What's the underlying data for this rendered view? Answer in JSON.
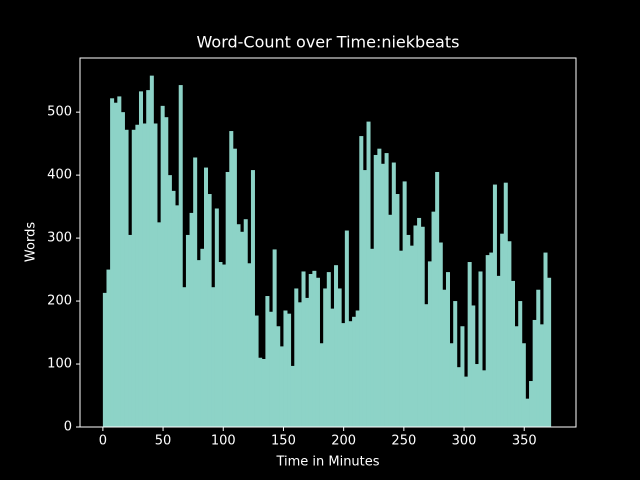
{
  "chart_data": {
    "type": "histogram",
    "title": "Word-Count over Time:niekbeats",
    "x_label": "Time in Minutes",
    "y_label": "Words",
    "color": "#8dd3c7",
    "bins": [
      0,
      3,
      6,
      9,
      12,
      15,
      18,
      21,
      24,
      27,
      30,
      33,
      36,
      39,
      42,
      45,
      48,
      51,
      54,
      57,
      60,
      63,
      66,
      69,
      72,
      75,
      78,
      81,
      84,
      87,
      90,
      93,
      96,
      99,
      102,
      105,
      108,
      111,
      114,
      117,
      120,
      123,
      126,
      129,
      132,
      135,
      138,
      141,
      144,
      147,
      150,
      153,
      156,
      159,
      162,
      165,
      168,
      171,
      174,
      177,
      180,
      183,
      186,
      189,
      192,
      195,
      198,
      201,
      204,
      207,
      210,
      213,
      216,
      219,
      222,
      225,
      228,
      231,
      234,
      237,
      240,
      243,
      246,
      249,
      252,
      255,
      258,
      261,
      264,
      267,
      270,
      273,
      276,
      279,
      282,
      285,
      288,
      291,
      294,
      297,
      300,
      303,
      306,
      309,
      312,
      315,
      318,
      321,
      324,
      327,
      330,
      333,
      336,
      339,
      342,
      345,
      348,
      351,
      354,
      357,
      360,
      363,
      366,
      369,
      372
    ],
    "values": [
      213,
      250,
      522,
      515,
      525,
      500,
      472,
      305,
      472,
      480,
      533,
      482,
      535,
      558,
      482,
      325,
      510,
      492,
      400,
      375,
      352,
      543,
      222,
      305,
      340,
      428,
      265,
      283,
      412,
      370,
      222,
      347,
      262,
      258,
      405,
      470,
      442,
      322,
      310,
      330,
      260,
      408,
      177,
      110,
      108,
      208,
      183,
      282,
      160,
      128,
      185,
      180,
      97,
      220,
      198,
      247,
      205,
      243,
      248,
      237,
      133,
      220,
      246,
      188,
      257,
      220,
      165,
      312,
      168,
      175,
      185,
      462,
      408,
      485,
      283,
      432,
      442,
      418,
      435,
      337,
      420,
      370,
      280,
      390,
      305,
      288,
      320,
      332,
      318,
      195,
      263,
      342,
      405,
      293,
      218,
      246,
      133,
      200,
      95,
      160,
      80,
      262,
      193,
      100,
      247,
      90,
      273,
      277,
      385,
      240,
      307,
      388,
      295,
      232,
      160,
      200,
      133,
      45,
      73,
      170,
      218,
      163,
      277,
      237
    ],
    "xlim": [
      -19,
      393
    ],
    "ylim": [
      0,
      586
    ],
    "xticks": [
      0,
      50,
      100,
      150,
      200,
      250,
      300,
      350
    ],
    "yticks": [
      0,
      100,
      200,
      300,
      400,
      500
    ]
  }
}
